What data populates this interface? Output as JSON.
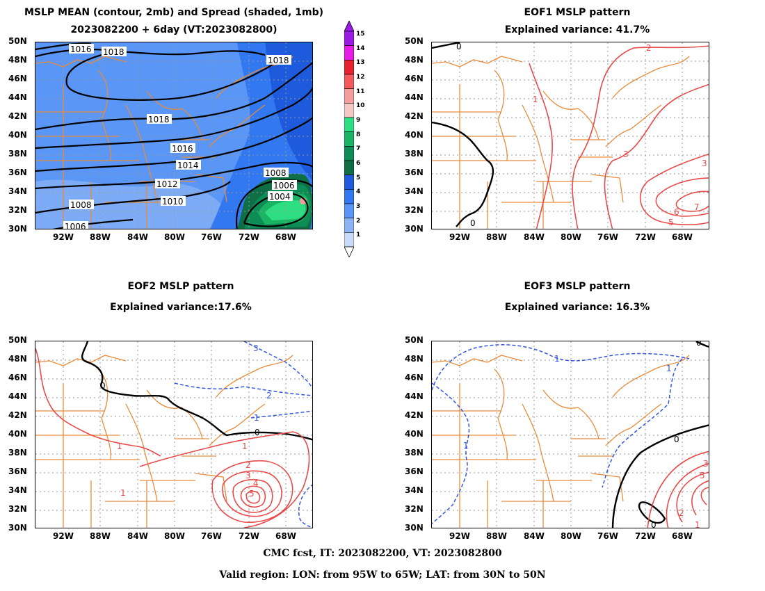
{
  "panels": [
    {
      "id": "mean",
      "title1": "MSLP MEAN (contour, 2mb) and Spread (shaded, 1mb)",
      "title2": "2023082200 + 6day (VT:2023082800)"
    },
    {
      "id": "eof1",
      "title1": "EOF1 MSLP pattern",
      "title2": "Explained variance: 41.7%"
    },
    {
      "id": "eof2",
      "title1": "EOF2 MSLP pattern",
      "title2": "Explained variance:17.6%"
    },
    {
      "id": "eof3",
      "title1": "EOF3 MSLP pattern",
      "title2": "Explained variance: 16.3%"
    }
  ],
  "lat_labels": [
    "50N",
    "48N",
    "46N",
    "44N",
    "42N",
    "40N",
    "38N",
    "36N",
    "34N",
    "32N",
    "30N"
  ],
  "lon_labels": [
    "92W",
    "88W",
    "84W",
    "80W",
    "76W",
    "72W",
    "68W"
  ],
  "colorbar": {
    "levels": [
      "15",
      "14",
      "13",
      "12",
      "11",
      "10",
      "9",
      "8",
      "7",
      "6",
      "5",
      "4",
      "3",
      "2",
      "1"
    ],
    "colors": [
      "#9b1be6",
      "#e61be6",
      "#e6222e",
      "#f55a5a",
      "#f59c9c",
      "#f5c8c8",
      "#2ede82",
      "#1bb465",
      "#0d8c55",
      "#0e6e46",
      "#1e5bdc",
      "#3278f0",
      "#5a96f5",
      "#8cb4f5",
      "#c8dcfa"
    ]
  },
  "mean_labels": [
    "1016",
    "1018",
    "1018",
    "1018",
    "1016",
    "1014",
    "1012",
    "1010",
    "1008",
    "1006",
    "1008",
    "1006",
    "1004",
    "1004",
    "1004",
    "1006"
  ],
  "eof1_labels": [
    "0",
    "2",
    "1",
    "3",
    "3",
    "6",
    "7",
    "5",
    "0"
  ],
  "eof2_labels": [
    "3",
    "0",
    "2",
    "1",
    "0",
    "1",
    "1",
    "2",
    "3",
    "4",
    "5",
    "1"
  ],
  "eof3_labels": [
    "0",
    "1",
    "1",
    "1",
    "0",
    "3",
    "5",
    "2",
    "1",
    "0"
  ],
  "footer": {
    "line1": "CMC fcst, IT: 2023082200, VT: 2023082800",
    "line2": "Valid region: LON: from 95W to 65W; LAT: from 30N to 50N"
  }
}
